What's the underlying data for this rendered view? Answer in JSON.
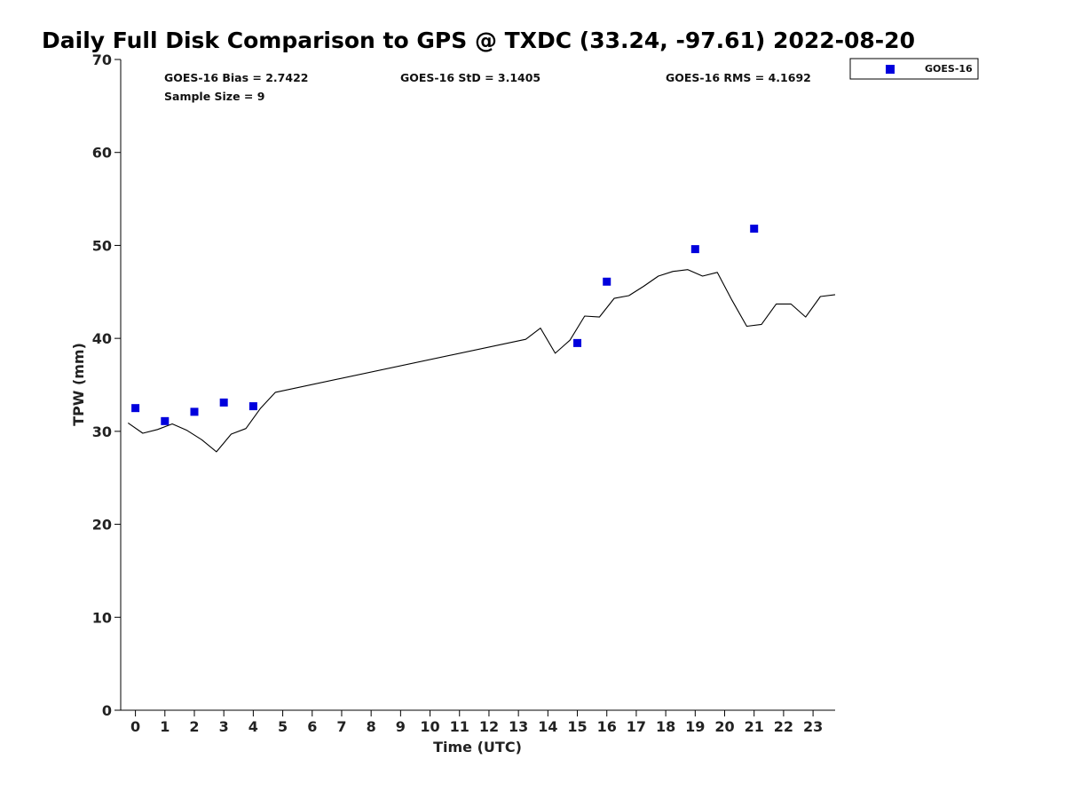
{
  "chart_data": {
    "type": "scatter",
    "title": "Daily Full Disk Comparison to GPS @ TXDC (33.24, -97.61) 2022-08-20",
    "xlabel": "Time (UTC)",
    "ylabel": "TPW (mm)",
    "xlim": [
      -0.5,
      23.75
    ],
    "ylim": [
      0,
      70
    ],
    "x_ticks": [
      0,
      1,
      2,
      3,
      4,
      5,
      6,
      7,
      8,
      9,
      10,
      11,
      12,
      13,
      14,
      15,
      16,
      17,
      18,
      19,
      20,
      21,
      22,
      23
    ],
    "y_ticks": [
      0,
      10,
      20,
      30,
      40,
      50,
      60,
      70
    ],
    "grid": false,
    "legend_position": "top-right-outside",
    "stats": {
      "bias": "GOES-16 Bias = 2.7422",
      "std": "GOES-16 StD = 3.1405",
      "rms": "GOES-16 RMS = 4.1692",
      "sample_size": "Sample Size = 9"
    },
    "series": [
      {
        "name": "GOES-16",
        "kind": "scatter",
        "color": "#0000dd",
        "marker": "square",
        "points": [
          {
            "x": 0.0,
            "y": 32.5
          },
          {
            "x": 1.0,
            "y": 31.1
          },
          {
            "x": 2.0,
            "y": 32.1
          },
          {
            "x": 3.0,
            "y": 33.1
          },
          {
            "x": 4.0,
            "y": 32.7
          },
          {
            "x": 15.0,
            "y": 39.5
          },
          {
            "x": 16.0,
            "y": 46.1
          },
          {
            "x": 19.0,
            "y": 49.6
          },
          {
            "x": 21.0,
            "y": 51.8
          }
        ]
      },
      {
        "kind": "line",
        "color": "#000000",
        "points": [
          {
            "x": -0.25,
            "y": 30.9
          },
          {
            "x": 0.25,
            "y": 29.8
          },
          {
            "x": 0.75,
            "y": 30.2
          },
          {
            "x": 1.25,
            "y": 30.8
          },
          {
            "x": 1.75,
            "y": 30.1
          },
          {
            "x": 2.25,
            "y": 29.1
          },
          {
            "x": 2.75,
            "y": 27.8
          },
          {
            "x": 3.25,
            "y": 29.7
          },
          {
            "x": 3.75,
            "y": 30.3
          },
          {
            "x": 4.25,
            "y": 32.5
          },
          {
            "x": 4.75,
            "y": 34.2
          },
          {
            "x": 13.25,
            "y": 39.9
          },
          {
            "x": 13.75,
            "y": 41.1
          },
          {
            "x": 14.25,
            "y": 38.4
          },
          {
            "x": 14.75,
            "y": 39.8
          },
          {
            "x": 15.25,
            "y": 42.4
          },
          {
            "x": 15.75,
            "y": 42.3
          },
          {
            "x": 16.25,
            "y": 44.3
          },
          {
            "x": 16.75,
            "y": 44.6
          },
          {
            "x": 17.25,
            "y": 45.6
          },
          {
            "x": 17.75,
            "y": 46.7
          },
          {
            "x": 18.25,
            "y": 47.2
          },
          {
            "x": 18.75,
            "y": 47.4
          },
          {
            "x": 19.25,
            "y": 46.7
          },
          {
            "x": 19.75,
            "y": 47.1
          },
          {
            "x": 20.25,
            "y": 44.1
          },
          {
            "x": 20.75,
            "y": 41.3
          },
          {
            "x": 21.25,
            "y": 41.5
          },
          {
            "x": 21.75,
            "y": 43.7
          },
          {
            "x": 22.25,
            "y": 43.7
          },
          {
            "x": 22.75,
            "y": 42.3
          },
          {
            "x": 23.25,
            "y": 44.5
          },
          {
            "x": 23.75,
            "y": 44.7
          }
        ]
      }
    ]
  }
}
